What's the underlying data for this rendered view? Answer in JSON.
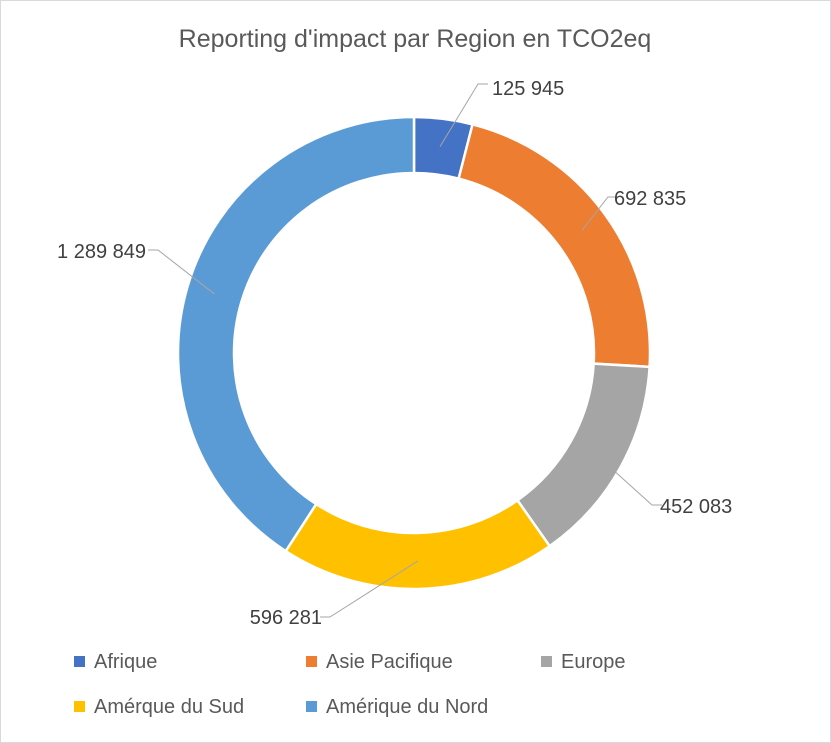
{
  "chart_data": {
    "type": "pie",
    "variant": "donut",
    "title": "Reporting d'impact par Region en TCO2eq",
    "categories": [
      "Afrique",
      "Asie Pacifique",
      "Europe",
      "Amérque du Sud",
      "Amérique du Nord"
    ],
    "values": [
      125945,
      692835,
      452083,
      596281,
      1289849
    ],
    "data_labels": [
      "125 945",
      "692 835",
      "452 083",
      "596 281",
      "1 289 849"
    ],
    "colors": [
      "#4472c4",
      "#ed7d31",
      "#a5a5a5",
      "#ffc000",
      "#5b9bd5"
    ],
    "legend_position": "bottom"
  }
}
